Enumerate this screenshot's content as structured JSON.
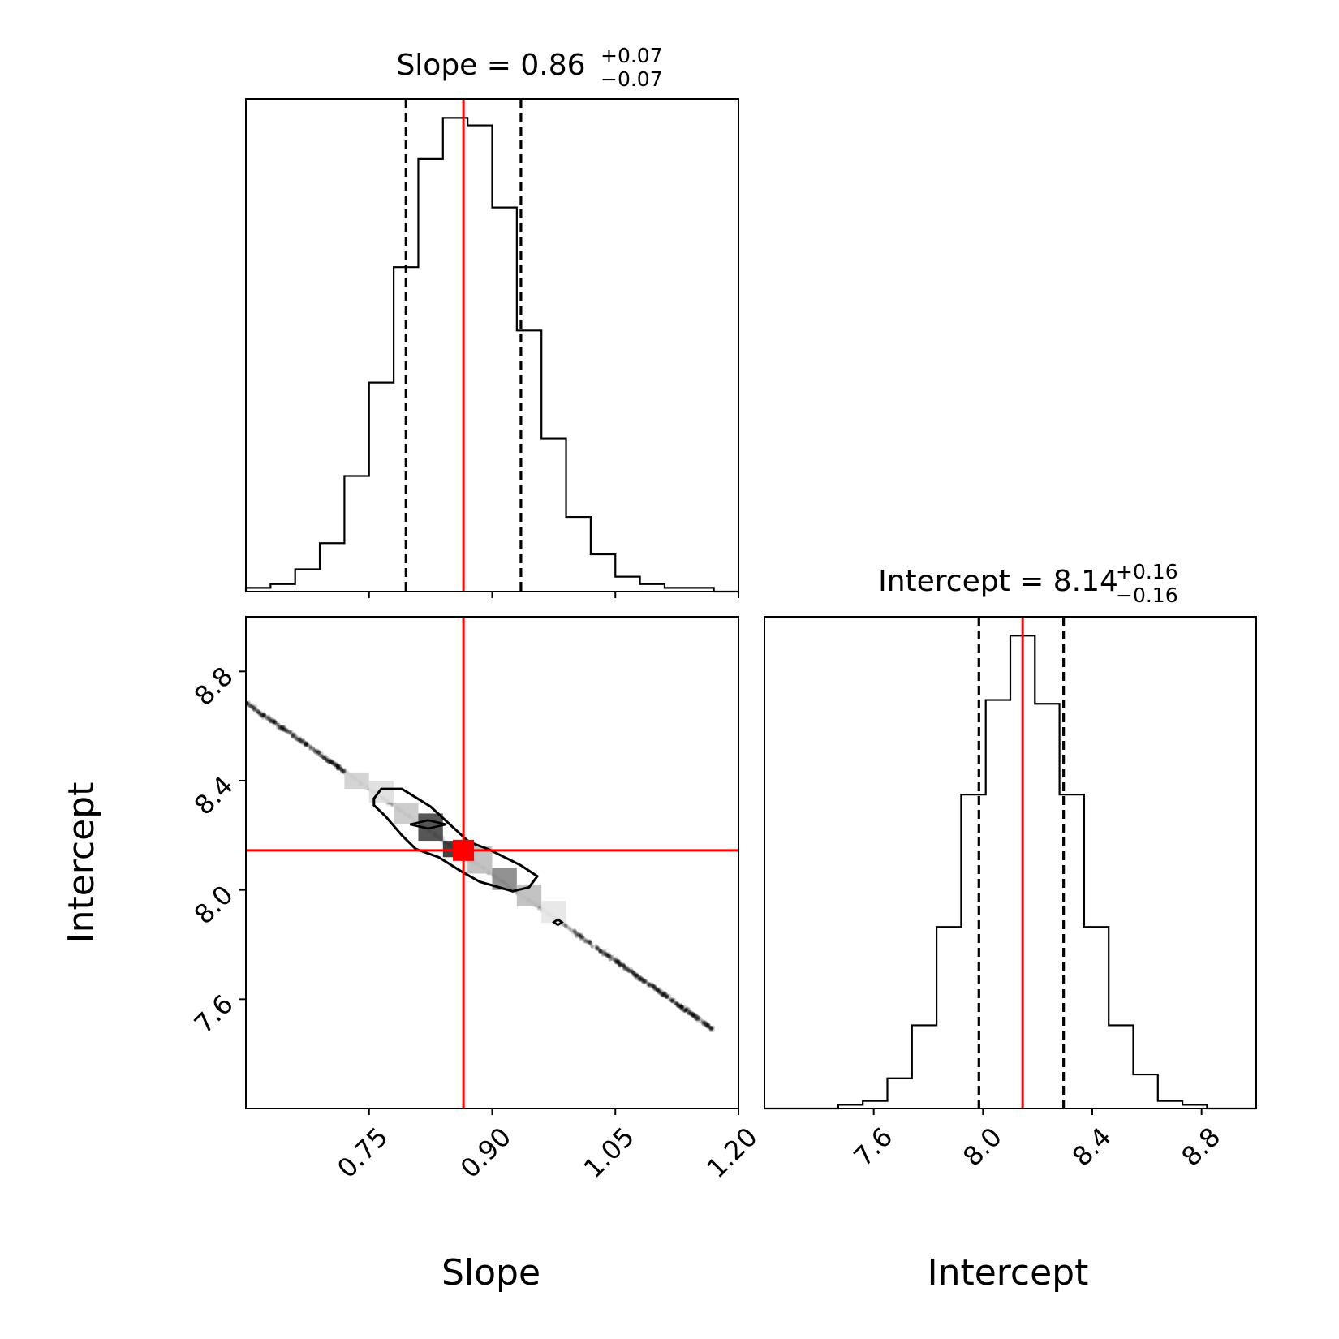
{
  "chart_data": [
    {
      "type": "histogram",
      "parameter": "Slope",
      "title": {
        "text": "Slope = 0.86",
        "sup": "+0.07",
        "sub": "−0.07"
      },
      "median": 0.86,
      "quantiles": [
        0.795,
        0.935
      ],
      "truth": 0.865,
      "bins": [
        0.6,
        0.63,
        0.66,
        0.69,
        0.72,
        0.75,
        0.78,
        0.81,
        0.84,
        0.87,
        0.9,
        0.93,
        0.96,
        0.99,
        1.02,
        1.05,
        1.08,
        1.11,
        1.14,
        1.17,
        1.2
      ],
      "counts": [
        1,
        2,
        6,
        13,
        31,
        56,
        87,
        116,
        127,
        125,
        103,
        70,
        41,
        20,
        10,
        4,
        2,
        1,
        1,
        0
      ],
      "xlim": [
        0.6,
        1.2
      ],
      "xticks": [
        "0.75",
        "0.90",
        "1.05",
        "1.20"
      ],
      "xtick_values": [
        0.75,
        0.9,
        1.05,
        1.2
      ]
    },
    {
      "type": "heatmap",
      "subtype": "2d-density-with-contours",
      "x_parameter": "Slope",
      "y_parameter": "Intercept",
      "xlabel": "Slope",
      "ylabel": "Intercept",
      "xlim": [
        0.6,
        1.2
      ],
      "ylim": [
        7.2,
        9.0
      ],
      "xticks": [
        "0.75",
        "0.90",
        "1.05",
        "1.20"
      ],
      "xtick_values": [
        0.75,
        0.9,
        1.05,
        1.2
      ],
      "yticks": [
        "7.6",
        "8.0",
        "8.4",
        "8.8"
      ],
      "ytick_values": [
        7.6,
        8.0,
        8.4,
        8.8
      ],
      "truth": [
        0.865,
        8.145
      ],
      "relation": "Intercept ≈ 8.14 − 2.1 × (Slope − 0.86)",
      "sample_range_slope": [
        0.6,
        1.17
      ],
      "density_cells": [
        {
          "x": [
            0.72,
            0.75
          ],
          "y": [
            8.37,
            8.43
          ],
          "shade": 0.22
        },
        {
          "x": [
            0.75,
            0.78
          ],
          "y": [
            8.32,
            8.4
          ],
          "shade": 0.15
        },
        {
          "x": [
            0.78,
            0.81
          ],
          "y": [
            8.24,
            8.32
          ],
          "shade": 0.25
        },
        {
          "x": [
            0.81,
            0.84
          ],
          "y": [
            8.18,
            8.28
          ],
          "shade": 0.85
        },
        {
          "x": [
            0.84,
            0.87
          ],
          "y": [
            8.12,
            8.18
          ],
          "shade": 0.95
        },
        {
          "x": [
            0.87,
            0.9
          ],
          "y": [
            8.06,
            8.16
          ],
          "shade": 0.3
        },
        {
          "x": [
            0.9,
            0.93
          ],
          "y": [
            8.0,
            8.08
          ],
          "shade": 0.55
        },
        {
          "x": [
            0.93,
            0.96
          ],
          "y": [
            7.94,
            8.02
          ],
          "shade": 0.3
        },
        {
          "x": [
            0.96,
            0.99
          ],
          "y": [
            7.88,
            7.96
          ],
          "shade": 0.12
        }
      ],
      "contours": [
        {
          "level": "outer",
          "points": [
            [
              0.756,
              8.335
            ],
            [
              0.765,
              8.37
            ],
            [
              0.79,
              8.37
            ],
            [
              0.825,
              8.305
            ],
            [
              0.852,
              8.23
            ],
            [
              0.872,
              8.175
            ],
            [
              0.895,
              8.15
            ],
            [
              0.935,
              8.09
            ],
            [
              0.955,
              8.05
            ],
            [
              0.945,
              8.01
            ],
            [
              0.925,
              7.995
            ],
            [
              0.885,
              8.03
            ],
            [
              0.864,
              8.065
            ],
            [
              0.835,
              8.12
            ],
            [
              0.807,
              8.15
            ],
            [
              0.79,
              8.2
            ],
            [
              0.77,
              8.27
            ],
            [
              0.756,
              8.31
            ]
          ]
        },
        {
          "level": "inner",
          "points": [
            [
              0.822,
              8.255
            ],
            [
              0.8,
              8.24
            ],
            [
              0.822,
              8.225
            ],
            [
              0.844,
              8.24
            ]
          ]
        },
        {
          "level": "inner",
          "points": [
            [
              0.975,
              7.882
            ],
            [
              0.98,
              7.872
            ],
            [
              0.985,
              7.882
            ],
            [
              0.98,
              7.892
            ]
          ]
        }
      ]
    },
    {
      "type": "histogram",
      "parameter": "Intercept",
      "title": {
        "text": "Intercept = 8.14",
        "sup": "+0.16",
        "sub": "−0.16"
      },
      "median": 8.14,
      "quantiles": [
        7.985,
        8.295
      ],
      "truth": 8.145,
      "bins": [
        7.2,
        7.29,
        7.38,
        7.47,
        7.56,
        7.65,
        7.74,
        7.83,
        7.92,
        8.01,
        8.1,
        8.19,
        8.28,
        8.37,
        8.46,
        8.55,
        8.64,
        8.73,
        8.82,
        8.91,
        9.0
      ],
      "counts": [
        0,
        0,
        0,
        1,
        2,
        8,
        22,
        48,
        83,
        108,
        125,
        107,
        83,
        48,
        22,
        9,
        2,
        1,
        0,
        0
      ],
      "xlim": [
        7.2,
        9.0
      ],
      "xlabel": "Intercept",
      "xticks": [
        "7.6",
        "8.0",
        "8.4",
        "8.8"
      ],
      "xtick_values": [
        7.6,
        8.0,
        8.4,
        8.8
      ]
    }
  ],
  "colors": {
    "truth": "#ff0000",
    "hist": "#000000",
    "quantile": "#000000",
    "density": "#000000"
  }
}
